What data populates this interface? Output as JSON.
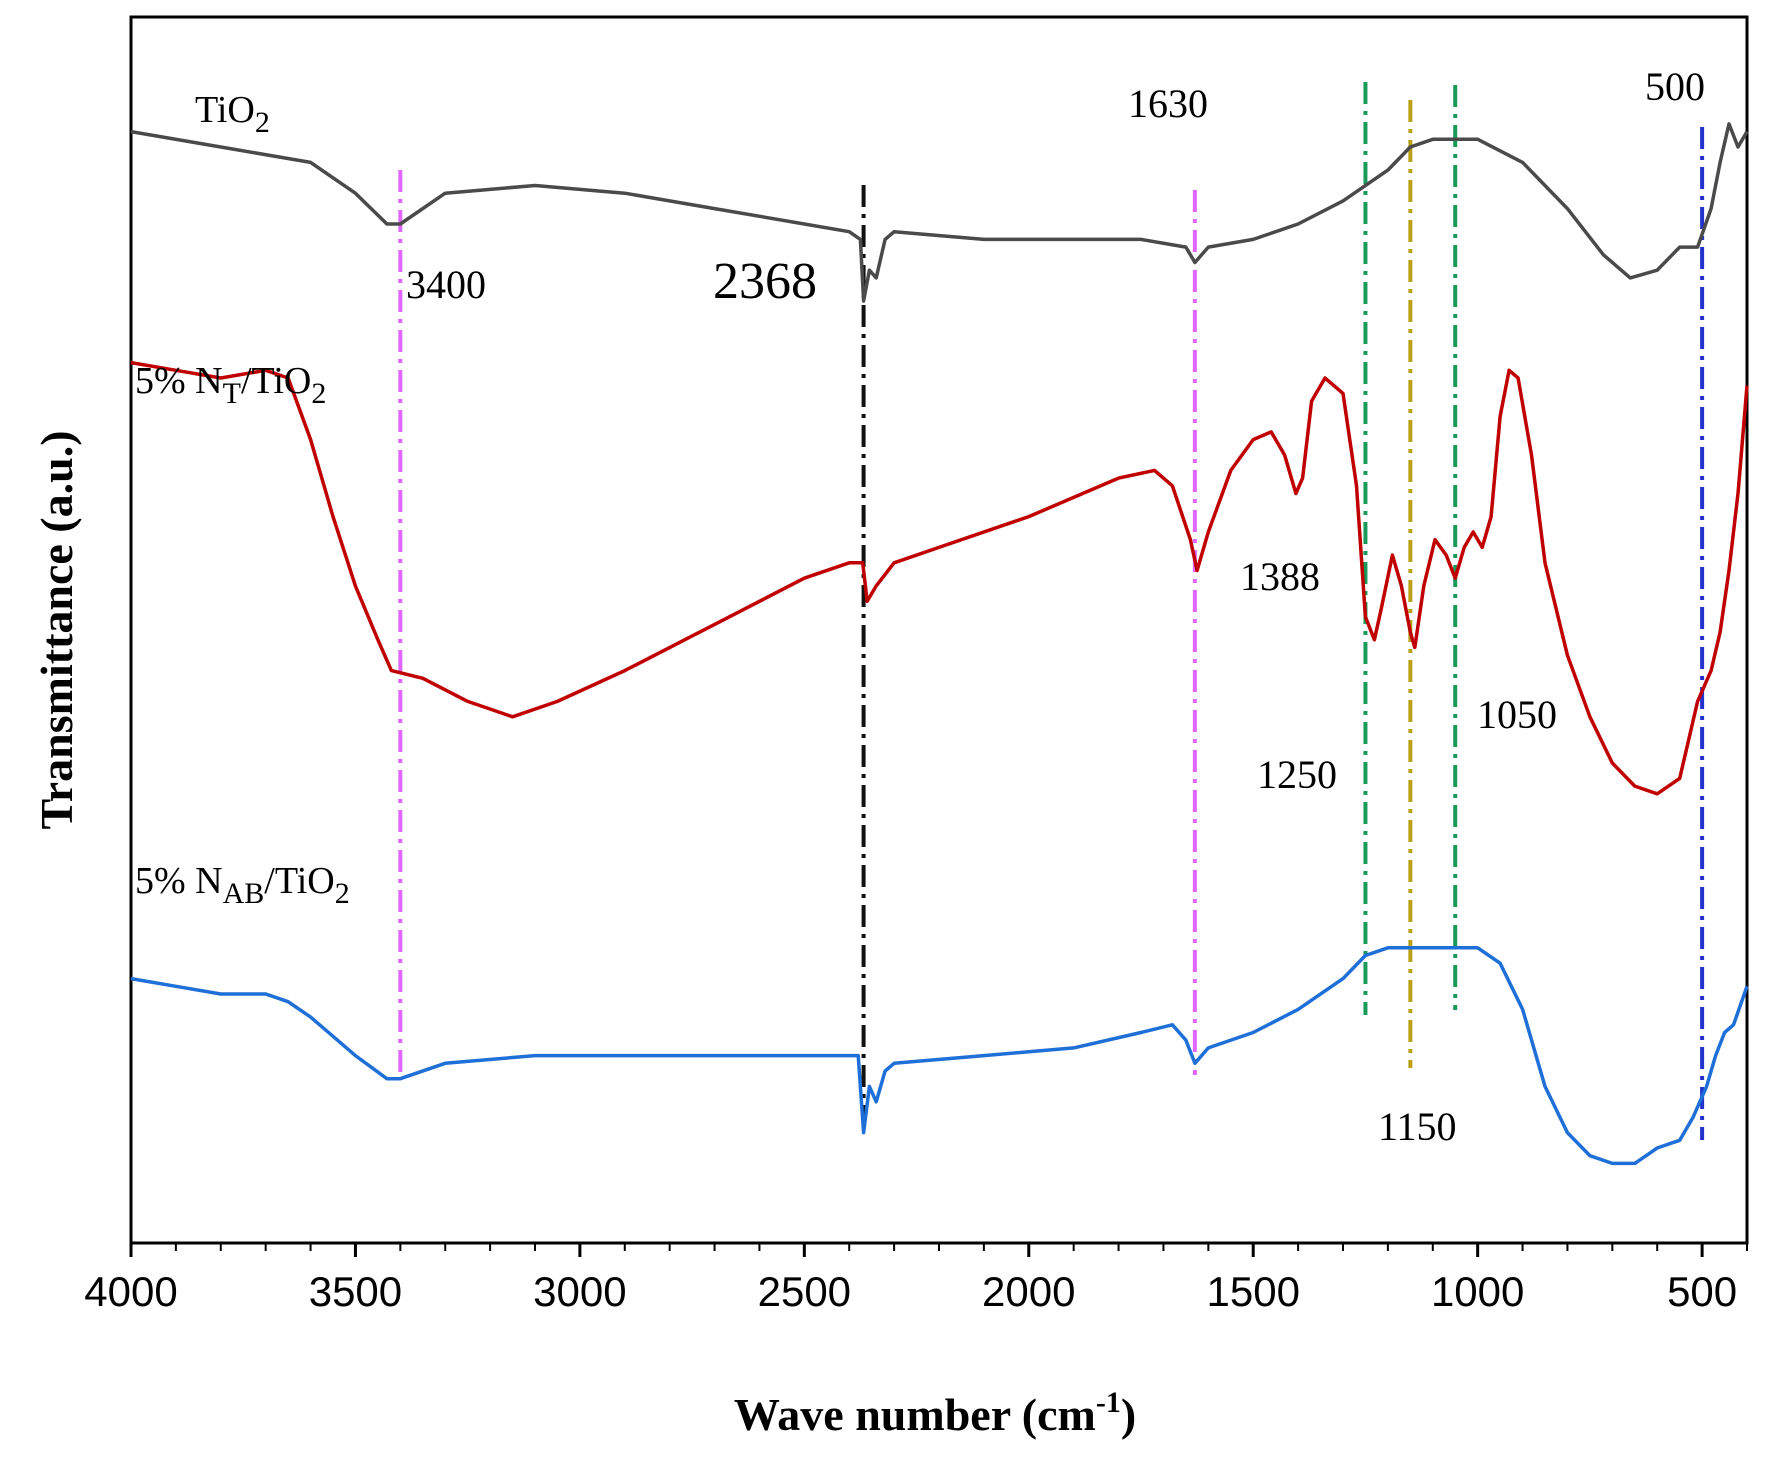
{
  "chart_data": {
    "type": "line",
    "title": "",
    "xlabel": "Wave number (cm",
    "xlabel_sup": "-1",
    "xlabel_close": ")",
    "ylabel": "Transmittance (a.u.)",
    "xlim": [
      4000,
      400
    ],
    "x_reversed": true,
    "y_ticks_labeled": false,
    "x_ticks": [
      "4000",
      "3500",
      "3000",
      "2500",
      "2000",
      "1500",
      "1000",
      "500"
    ],
    "x_tick_values": [
      4000,
      3500,
      3000,
      2500,
      2000,
      1500,
      1000,
      500
    ],
    "series": [
      {
        "label_parts": {
          "main": "TiO",
          "sub": "2",
          "rest": ""
        },
        "color": "#4a4a4a",
        "points": [
          [
            4000,
            0.92
          ],
          [
            3800,
            0.9
          ],
          [
            3600,
            0.88
          ],
          [
            3500,
            0.84
          ],
          [
            3430,
            0.8
          ],
          [
            3400,
            0.8
          ],
          [
            3300,
            0.84
          ],
          [
            3100,
            0.85
          ],
          [
            2900,
            0.84
          ],
          [
            2700,
            0.82
          ],
          [
            2500,
            0.8
          ],
          [
            2400,
            0.79
          ],
          [
            2375,
            0.78
          ],
          [
            2368,
            0.7
          ],
          [
            2355,
            0.74
          ],
          [
            2340,
            0.73
          ],
          [
            2320,
            0.78
          ],
          [
            2300,
            0.79
          ],
          [
            2100,
            0.78
          ],
          [
            1900,
            0.78
          ],
          [
            1750,
            0.78
          ],
          [
            1650,
            0.77
          ],
          [
            1630,
            0.75
          ],
          [
            1600,
            0.77
          ],
          [
            1500,
            0.78
          ],
          [
            1400,
            0.8
          ],
          [
            1300,
            0.83
          ],
          [
            1200,
            0.87
          ],
          [
            1150,
            0.9
          ],
          [
            1100,
            0.91
          ],
          [
            1000,
            0.91
          ],
          [
            900,
            0.88
          ],
          [
            800,
            0.82
          ],
          [
            720,
            0.76
          ],
          [
            660,
            0.73
          ],
          [
            600,
            0.74
          ],
          [
            550,
            0.77
          ],
          [
            510,
            0.77
          ],
          [
            480,
            0.82
          ],
          [
            460,
            0.88
          ],
          [
            440,
            0.93
          ],
          [
            420,
            0.9
          ],
          [
            400,
            0.92
          ]
        ]
      },
      {
        "label_parts": {
          "main": "5% N",
          "sub": "T",
          "rest": "/TiO",
          "sub2": "2"
        },
        "color": "#c00000",
        "points": [
          [
            4000,
            0.62
          ],
          [
            3900,
            0.61
          ],
          [
            3800,
            0.6
          ],
          [
            3700,
            0.61
          ],
          [
            3650,
            0.6
          ],
          [
            3600,
            0.52
          ],
          [
            3550,
            0.42
          ],
          [
            3500,
            0.33
          ],
          [
            3450,
            0.26
          ],
          [
            3420,
            0.22
          ],
          [
            3350,
            0.21
          ],
          [
            3250,
            0.18
          ],
          [
            3150,
            0.16
          ],
          [
            3050,
            0.18
          ],
          [
            2900,
            0.22
          ],
          [
            2700,
            0.28
          ],
          [
            2500,
            0.34
          ],
          [
            2400,
            0.36
          ],
          [
            2370,
            0.36
          ],
          [
            2360,
            0.31
          ],
          [
            2340,
            0.33
          ],
          [
            2300,
            0.36
          ],
          [
            2200,
            0.38
          ],
          [
            2000,
            0.42
          ],
          [
            1800,
            0.47
          ],
          [
            1720,
            0.48
          ],
          [
            1680,
            0.46
          ],
          [
            1640,
            0.39
          ],
          [
            1625,
            0.35
          ],
          [
            1600,
            0.4
          ],
          [
            1550,
            0.48
          ],
          [
            1500,
            0.52
          ],
          [
            1460,
            0.53
          ],
          [
            1430,
            0.5
          ],
          [
            1405,
            0.45
          ],
          [
            1390,
            0.47
          ],
          [
            1370,
            0.57
          ],
          [
            1340,
            0.6
          ],
          [
            1300,
            0.58
          ],
          [
            1270,
            0.46
          ],
          [
            1250,
            0.29
          ],
          [
            1230,
            0.26
          ],
          [
            1215,
            0.3
          ],
          [
            1190,
            0.37
          ],
          [
            1170,
            0.33
          ],
          [
            1150,
            0.27
          ],
          [
            1140,
            0.25
          ],
          [
            1120,
            0.33
          ],
          [
            1095,
            0.39
          ],
          [
            1070,
            0.37
          ],
          [
            1050,
            0.34
          ],
          [
            1030,
            0.38
          ],
          [
            1010,
            0.4
          ],
          [
            990,
            0.38
          ],
          [
            970,
            0.42
          ],
          [
            950,
            0.55
          ],
          [
            930,
            0.61
          ],
          [
            910,
            0.6
          ],
          [
            880,
            0.5
          ],
          [
            850,
            0.36
          ],
          [
            800,
            0.24
          ],
          [
            750,
            0.16
          ],
          [
            700,
            0.1
          ],
          [
            650,
            0.07
          ],
          [
            600,
            0.06
          ],
          [
            550,
            0.08
          ],
          [
            510,
            0.18
          ],
          [
            480,
            0.22
          ],
          [
            460,
            0.27
          ],
          [
            440,
            0.35
          ],
          [
            420,
            0.45
          ],
          [
            400,
            0.59
          ]
        ]
      },
      {
        "label_parts": {
          "main": "5% N",
          "sub": "AB",
          "rest": "/TiO",
          "sub2": "2"
        },
        "color": "#1f6fd8",
        "points": [
          [
            4000,
            -0.18
          ],
          [
            3900,
            -0.19
          ],
          [
            3800,
            -0.2
          ],
          [
            3700,
            -0.2
          ],
          [
            3650,
            -0.21
          ],
          [
            3600,
            -0.23
          ],
          [
            3500,
            -0.28
          ],
          [
            3430,
            -0.31
          ],
          [
            3400,
            -0.31
          ],
          [
            3300,
            -0.29
          ],
          [
            3100,
            -0.28
          ],
          [
            2900,
            -0.28
          ],
          [
            2700,
            -0.28
          ],
          [
            2500,
            -0.28
          ],
          [
            2380,
            -0.28
          ],
          [
            2368,
            -0.38
          ],
          [
            2355,
            -0.32
          ],
          [
            2340,
            -0.34
          ],
          [
            2320,
            -0.3
          ],
          [
            2300,
            -0.29
          ],
          [
            2100,
            -0.28
          ],
          [
            1900,
            -0.27
          ],
          [
            1750,
            -0.25
          ],
          [
            1680,
            -0.24
          ],
          [
            1650,
            -0.26
          ],
          [
            1630,
            -0.29
          ],
          [
            1600,
            -0.27
          ],
          [
            1500,
            -0.25
          ],
          [
            1400,
            -0.22
          ],
          [
            1300,
            -0.18
          ],
          [
            1250,
            -0.15
          ],
          [
            1200,
            -0.14
          ],
          [
            1100,
            -0.14
          ],
          [
            1000,
            -0.14
          ],
          [
            950,
            -0.16
          ],
          [
            900,
            -0.22
          ],
          [
            850,
            -0.32
          ],
          [
            800,
            -0.38
          ],
          [
            750,
            -0.41
          ],
          [
            700,
            -0.42
          ],
          [
            650,
            -0.42
          ],
          [
            600,
            -0.4
          ],
          [
            550,
            -0.39
          ],
          [
            520,
            -0.36
          ],
          [
            490,
            -0.32
          ],
          [
            470,
            -0.28
          ],
          [
            450,
            -0.25
          ],
          [
            430,
            -0.24
          ],
          [
            400,
            -0.19
          ]
        ]
      }
    ],
    "vlines": [
      {
        "x": 3400,
        "color": "#e066ff",
        "label": "3400"
      },
      {
        "x": 2368,
        "color": "#111111",
        "label": "2368"
      },
      {
        "x": 1630,
        "color": "#e066ff",
        "label": "1630"
      },
      {
        "x": 1250,
        "color": "#1a9a5a",
        "label": "1250"
      },
      {
        "x": 1150,
        "color": "#b8a21a",
        "label": "1150"
      },
      {
        "x": 1050,
        "color": "#1a9a5a",
        "label": "1050"
      },
      {
        "x": 500,
        "color": "#2233cc",
        "label": "500"
      }
    ],
    "annotations": [
      {
        "text": "1388"
      }
    ],
    "grid": false,
    "legend": "none"
  }
}
